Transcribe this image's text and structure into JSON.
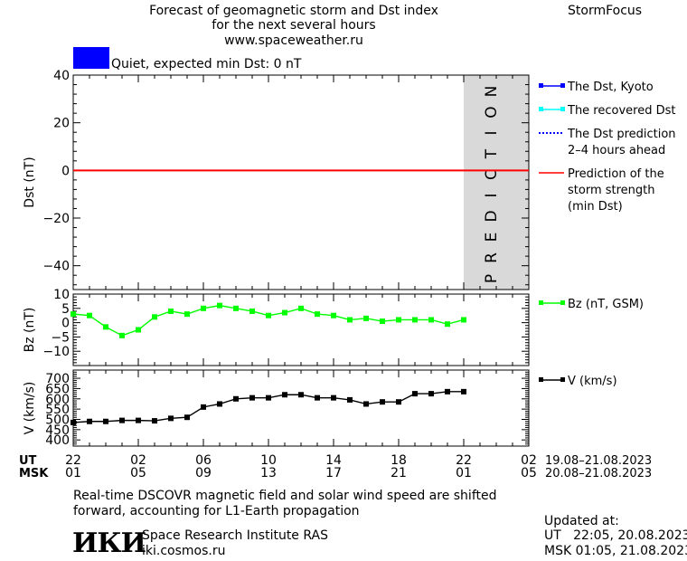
{
  "header": {
    "title_line1": "Forecast of geomagnetic storm and Dst index",
    "title_line2": "for the next several hours",
    "site": "www.spaceweather.ru",
    "brand": "StormFocus"
  },
  "status": {
    "color": "#0000ff",
    "text": "Quiet, expected min Dst: 0 nT"
  },
  "prediction_label": "PREDICTION",
  "legends": {
    "dst": [
      {
        "label": [
          "The Dst, Kyoto"
        ],
        "color": "#0000ff",
        "style": "line-markers"
      },
      {
        "label": [
          "The recovered Dst"
        ],
        "color": "#00ffff",
        "style": "line-markers"
      },
      {
        "label": [
          "The Dst prediction",
          "2–4 hours ahead"
        ],
        "color": "#0000ff",
        "style": "dotted"
      },
      {
        "label": [
          "Prediction of the",
          "storm strength",
          "(min Dst)"
        ],
        "color": "#ff0000",
        "style": "line"
      }
    ],
    "bz": {
      "label": "Bz (nT, GSM)",
      "color": "#00ff00"
    },
    "v": {
      "label": "V (km/s)",
      "color": "#000000"
    }
  },
  "time_axis": {
    "ut_label": "UT",
    "msk_label": "MSK",
    "ut_ticks": [
      "22",
      "02",
      "06",
      "10",
      "14",
      "18",
      "22",
      "02"
    ],
    "msk_ticks": [
      "01",
      "05",
      "09",
      "13",
      "17",
      "21",
      "01",
      "05"
    ],
    "ut_range": "19.08–21.08.2023",
    "msk_range": "20.08–21.08.2023"
  },
  "footer": {
    "note_line1": "Real-time DSCOVR magnetic field and solar wind speed are shifted",
    "note_line2": "forward, accounting for L1-Earth propagation",
    "logo": "ИКИ",
    "institute": "Space Research Institute RAS",
    "institute_site": "iki.cosmos.ru",
    "updated_label": "Updated at:",
    "updated_ut": "UT   22:05, 20.08.2023",
    "updated_msk": "MSK 01:05, 21.08.2023"
  },
  "chart_data": [
    {
      "type": "line",
      "ylabel": "Dst (nT)",
      "ylim": [
        -50,
        40
      ],
      "yticks": [
        40,
        20,
        0,
        -20,
        -40
      ],
      "xlim": [
        0,
        28
      ],
      "prediction_region": [
        24,
        28
      ],
      "series": [
        {
          "name": "Prediction of the storm strength (min Dst)",
          "color": "#ff0000",
          "x": [
            0,
            28
          ],
          "values": [
            0,
            0
          ]
        }
      ]
    },
    {
      "type": "line",
      "ylabel": "Bz (nT)",
      "ylim": [
        -15,
        10
      ],
      "yticks": [
        10,
        5,
        0,
        -5,
        -10
      ],
      "xlim": [
        0,
        28
      ],
      "series": [
        {
          "name": "Bz (nT, GSM)",
          "color": "#00ff00",
          "x": [
            0,
            1,
            2,
            3,
            4,
            5,
            6,
            7,
            8,
            9,
            10,
            11,
            12,
            13,
            14,
            15,
            16,
            17,
            18,
            19,
            20,
            21,
            22,
            23,
            24
          ],
          "values": [
            3,
            2.5,
            -1.5,
            -4.5,
            -2.5,
            2,
            4,
            3,
            5,
            6,
            5,
            4,
            2.5,
            3.5,
            5,
            3,
            2.5,
            1,
            1.5,
            0.5,
            1,
            1,
            1,
            -0.5,
            1
          ]
        }
      ]
    },
    {
      "type": "line",
      "ylabel": "V (km/s)",
      "ylim": [
        370,
        740
      ],
      "yticks": [
        700,
        650,
        600,
        550,
        500,
        450,
        400
      ],
      "xlim": [
        0,
        28
      ],
      "series": [
        {
          "name": "V (km/s)",
          "color": "#000000",
          "x": [
            0,
            1,
            2,
            3,
            4,
            5,
            6,
            7,
            8,
            9,
            10,
            11,
            12,
            13,
            14,
            15,
            16,
            17,
            18,
            19,
            20,
            21,
            22,
            23,
            24
          ],
          "values": [
            485,
            490,
            490,
            495,
            495,
            493,
            505,
            510,
            560,
            575,
            600,
            605,
            605,
            620,
            620,
            605,
            605,
            595,
            575,
            585,
            585,
            625,
            625,
            635,
            635
          ]
        }
      ]
    }
  ]
}
